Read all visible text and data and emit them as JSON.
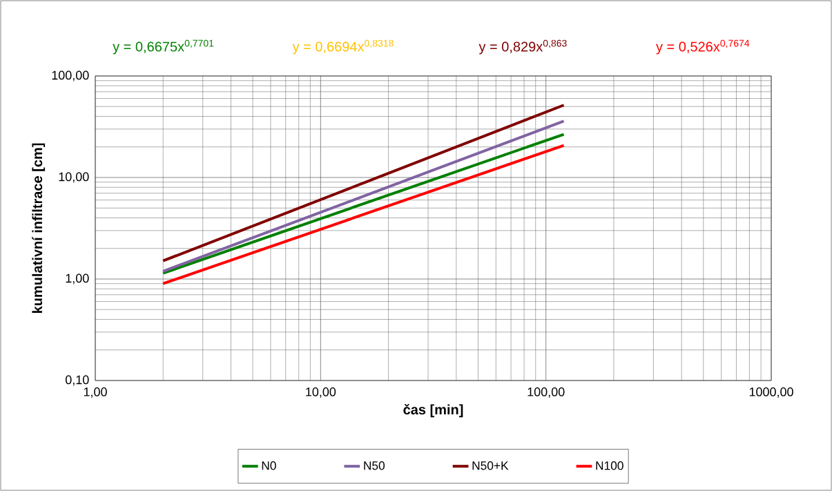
{
  "chart_data": {
    "type": "line",
    "xlabel": "čas [min]",
    "ylabel": "kumulativní infiltrace [cm]",
    "log": "xy",
    "grid": true,
    "legend": "bottom",
    "marker": "none",
    "line_style": "solid",
    "x": [
      2,
      120
    ],
    "xlim": [
      1,
      1000
    ],
    "ylim": [
      0.1,
      100
    ],
    "xticks": [
      {
        "value": 1,
        "label": "1,00"
      },
      {
        "value": 10,
        "label": "10,00"
      },
      {
        "value": 100,
        "label": "100,00"
      },
      {
        "value": 1000,
        "label": "1000,00"
      }
    ],
    "yticks": [
      {
        "value": 0.1,
        "label": "0,10"
      },
      {
        "value": 1,
        "label": "1,00"
      },
      {
        "value": 10,
        "label": "10,00"
      },
      {
        "value": 100,
        "label": "100,00"
      }
    ],
    "series": [
      {
        "name": "N0",
        "color": "#008000",
        "values": [
          1.14,
          26.6
        ]
      },
      {
        "name": "N50",
        "color": "#8064a2",
        "values": [
          1.19,
          35.9
        ]
      },
      {
        "name": "N50+K",
        "color": "#800000",
        "values": [
          1.51,
          51.6
        ]
      },
      {
        "name": "N100",
        "color": "#ff0000",
        "values": [
          0.9,
          20.7
        ]
      }
    ],
    "annotations": [
      "y = 0,6675x$^{0,7701}$",
      "y = 0,6694x$^{0,8318}$",
      "y = 0,829x$^{0,863}$",
      "y = 0,526x$^{0,7674}$"
    ]
  }
}
